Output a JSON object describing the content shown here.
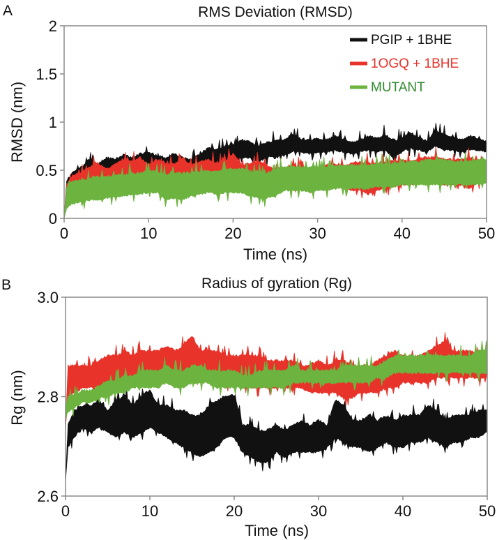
{
  "chart_data": [
    {
      "type": "area",
      "panel_label": "A",
      "title": "RMS Deviation (RMSD)",
      "xlabel": "Time (ns)",
      "ylabel": "RMSD (nm)",
      "xlim": [
        0,
        50
      ],
      "ylim": [
        0,
        2
      ],
      "x_ticks": [
        0,
        10,
        20,
        30,
        40,
        50
      ],
      "x_tick_labels": [
        "0",
        "10",
        "20",
        "30",
        "40",
        "50"
      ],
      "y_ticks": [
        0,
        0.5,
        1,
        1.5,
        2
      ],
      "y_tick_labels": [
        "0",
        "0.5",
        "1",
        "1.5",
        "2"
      ],
      "grid": false,
      "legend_position": "top-right",
      "x": [
        0,
        0.3,
        1,
        2,
        3,
        4,
        5,
        6,
        7,
        8,
        9,
        10,
        11,
        12,
        13,
        14,
        15,
        16,
        17,
        18,
        19,
        20,
        21,
        22,
        23,
        24,
        25,
        26,
        27,
        28,
        29,
        30,
        31,
        32,
        33,
        34,
        35,
        36,
        37,
        38,
        39,
        40,
        41,
        42,
        43,
        44,
        45,
        46,
        47,
        48,
        49,
        50
      ],
      "series": [
        {
          "name": "PGIP + 1BHE",
          "color": "#111111",
          "upper": [
            0.0,
            0.38,
            0.47,
            0.52,
            0.6,
            0.55,
            0.62,
            0.6,
            0.65,
            0.62,
            0.66,
            0.68,
            0.64,
            0.62,
            0.66,
            0.62,
            0.6,
            0.65,
            0.72,
            0.7,
            0.74,
            0.76,
            0.8,
            0.78,
            0.74,
            0.78,
            0.8,
            0.8,
            0.86,
            0.82,
            0.8,
            0.82,
            0.8,
            0.84,
            0.82,
            0.78,
            0.8,
            0.84,
            0.82,
            0.86,
            0.8,
            0.82,
            0.88,
            0.82,
            0.8,
            0.9,
            0.86,
            0.84,
            0.8,
            0.84,
            0.82,
            0.78
          ],
          "lower": [
            0.0,
            0.33,
            0.4,
            0.44,
            0.47,
            0.47,
            0.5,
            0.5,
            0.52,
            0.5,
            0.54,
            0.55,
            0.52,
            0.5,
            0.54,
            0.52,
            0.5,
            0.54,
            0.58,
            0.56,
            0.6,
            0.6,
            0.64,
            0.64,
            0.6,
            0.64,
            0.66,
            0.66,
            0.7,
            0.7,
            0.68,
            0.7,
            0.7,
            0.72,
            0.7,
            0.68,
            0.7,
            0.72,
            0.7,
            0.72,
            0.64,
            0.7,
            0.74,
            0.72,
            0.7,
            0.76,
            0.72,
            0.72,
            0.7,
            0.72,
            0.72,
            0.7
          ]
        },
        {
          "name": "1OGQ + 1BHE",
          "color": "#e8332a",
          "upper": [
            0.0,
            0.34,
            0.44,
            0.46,
            0.52,
            0.56,
            0.5,
            0.55,
            0.6,
            0.58,
            0.62,
            0.55,
            0.6,
            0.56,
            0.55,
            0.62,
            0.54,
            0.58,
            0.6,
            0.56,
            0.58,
            0.66,
            0.54,
            0.56,
            0.58,
            0.54,
            0.5,
            0.52,
            0.54,
            0.52,
            0.5,
            0.52,
            0.54,
            0.56,
            0.54,
            0.56,
            0.58,
            0.56,
            0.56,
            0.58,
            0.58,
            0.6,
            0.58,
            0.62,
            0.62,
            0.64,
            0.6,
            0.6,
            0.6,
            0.62,
            0.6,
            0.58
          ],
          "lower": [
            0.0,
            0.28,
            0.34,
            0.36,
            0.38,
            0.4,
            0.38,
            0.4,
            0.42,
            0.42,
            0.44,
            0.42,
            0.44,
            0.4,
            0.4,
            0.44,
            0.4,
            0.42,
            0.44,
            0.42,
            0.44,
            0.46,
            0.38,
            0.36,
            0.38,
            0.36,
            0.36,
            0.34,
            0.34,
            0.32,
            0.32,
            0.32,
            0.34,
            0.34,
            0.32,
            0.3,
            0.3,
            0.26,
            0.3,
            0.32,
            0.34,
            0.36,
            0.36,
            0.38,
            0.38,
            0.38,
            0.36,
            0.36,
            0.36,
            0.32,
            0.38,
            0.4
          ]
        },
        {
          "name": "MUTANT",
          "color": "#6db33f",
          "upper": [
            0.0,
            0.3,
            0.38,
            0.38,
            0.4,
            0.42,
            0.42,
            0.44,
            0.44,
            0.46,
            0.46,
            0.48,
            0.48,
            0.44,
            0.46,
            0.46,
            0.46,
            0.48,
            0.48,
            0.48,
            0.5,
            0.5,
            0.5,
            0.48,
            0.48,
            0.46,
            0.5,
            0.52,
            0.52,
            0.52,
            0.52,
            0.52,
            0.52,
            0.54,
            0.54,
            0.54,
            0.54,
            0.54,
            0.56,
            0.56,
            0.56,
            0.56,
            0.58,
            0.58,
            0.6,
            0.6,
            0.6,
            0.58,
            0.58,
            0.58,
            0.6,
            0.6
          ],
          "lower": [
            0.0,
            0.12,
            0.16,
            0.18,
            0.2,
            0.2,
            0.22,
            0.24,
            0.24,
            0.26,
            0.26,
            0.28,
            0.28,
            0.2,
            0.22,
            0.2,
            0.24,
            0.26,
            0.28,
            0.26,
            0.28,
            0.28,
            0.28,
            0.24,
            0.22,
            0.22,
            0.24,
            0.3,
            0.3,
            0.3,
            0.28,
            0.3,
            0.3,
            0.32,
            0.32,
            0.32,
            0.32,
            0.32,
            0.34,
            0.34,
            0.34,
            0.36,
            0.36,
            0.36,
            0.36,
            0.36,
            0.36,
            0.36,
            0.36,
            0.36,
            0.36,
            0.38
          ]
        }
      ]
    },
    {
      "type": "area",
      "panel_label": "B",
      "title": "Radius of gyration (Rg)",
      "xlabel": "Time (ns)",
      "ylabel": "Rg (nm)",
      "xlim": [
        0,
        50
      ],
      "ylim": [
        2.6,
        3.0
      ],
      "x_ticks": [
        0,
        10,
        20,
        30,
        40,
        50
      ],
      "x_tick_labels": [
        "0",
        "10",
        "20",
        "30",
        "40",
        "50"
      ],
      "y_ticks": [
        2.6,
        2.8,
        3.0
      ],
      "y_tick_labels": [
        "2.6",
        "2.8",
        "3.0"
      ],
      "grid": false,
      "x": [
        0,
        0.3,
        1,
        2,
        3,
        4,
        5,
        6,
        7,
        8,
        9,
        10,
        11,
        12,
        13,
        14,
        15,
        16,
        17,
        18,
        19,
        20,
        21,
        22,
        23,
        24,
        25,
        26,
        27,
        28,
        29,
        30,
        31,
        32,
        33,
        34,
        35,
        36,
        37,
        38,
        39,
        40,
        41,
        42,
        43,
        44,
        45,
        46,
        47,
        48,
        49,
        50
      ],
      "series": [
        {
          "name": "PGIP + 1BHE",
          "color": "#111111",
          "upper": [
            2.63,
            2.74,
            2.77,
            2.78,
            2.78,
            2.79,
            2.77,
            2.79,
            2.8,
            2.78,
            2.8,
            2.81,
            2.78,
            2.78,
            2.77,
            2.77,
            2.76,
            2.76,
            2.78,
            2.79,
            2.8,
            2.8,
            2.74,
            2.74,
            2.73,
            2.73,
            2.74,
            2.73,
            2.74,
            2.75,
            2.74,
            2.75,
            2.74,
            2.79,
            2.78,
            2.75,
            2.75,
            2.76,
            2.75,
            2.76,
            2.75,
            2.76,
            2.76,
            2.76,
            2.78,
            2.77,
            2.75,
            2.76,
            2.76,
            2.76,
            2.77,
            2.77
          ],
          "lower": [
            2.63,
            2.7,
            2.72,
            2.74,
            2.73,
            2.74,
            2.73,
            2.72,
            2.73,
            2.72,
            2.73,
            2.74,
            2.73,
            2.72,
            2.71,
            2.7,
            2.69,
            2.68,
            2.69,
            2.7,
            2.72,
            2.72,
            2.69,
            2.68,
            2.67,
            2.67,
            2.69,
            2.68,
            2.69,
            2.69,
            2.69,
            2.69,
            2.7,
            2.72,
            2.71,
            2.7,
            2.7,
            2.69,
            2.7,
            2.71,
            2.7,
            2.7,
            2.71,
            2.71,
            2.72,
            2.71,
            2.7,
            2.71,
            2.71,
            2.72,
            2.72,
            2.73
          ]
        },
        {
          "name": "1OGQ + 1BHE",
          "color": "#e8332a",
          "upper": [
            2.74,
            2.86,
            2.86,
            2.86,
            2.86,
            2.87,
            2.88,
            2.88,
            2.89,
            2.88,
            2.89,
            2.89,
            2.89,
            2.9,
            2.89,
            2.9,
            2.92,
            2.89,
            2.89,
            2.89,
            2.88,
            2.88,
            2.88,
            2.88,
            2.88,
            2.87,
            2.87,
            2.87,
            2.87,
            2.86,
            2.86,
            2.87,
            2.86,
            2.87,
            2.87,
            2.86,
            2.86,
            2.86,
            2.87,
            2.88,
            2.89,
            2.88,
            2.88,
            2.88,
            2.89,
            2.9,
            2.91,
            2.89,
            2.89,
            2.89,
            2.88,
            2.89
          ],
          "lower": [
            2.74,
            2.8,
            2.81,
            2.82,
            2.82,
            2.82,
            2.82,
            2.83,
            2.83,
            2.83,
            2.83,
            2.84,
            2.84,
            2.84,
            2.84,
            2.84,
            2.84,
            2.84,
            2.84,
            2.84,
            2.83,
            2.83,
            2.83,
            2.82,
            2.82,
            2.82,
            2.82,
            2.82,
            2.82,
            2.82,
            2.81,
            2.81,
            2.81,
            2.81,
            2.8,
            2.8,
            2.81,
            2.81,
            2.81,
            2.82,
            2.82,
            2.83,
            2.83,
            2.83,
            2.83,
            2.84,
            2.84,
            2.84,
            2.84,
            2.84,
            2.84,
            2.84
          ]
        },
        {
          "name": "MUTANT",
          "color": "#6db33f",
          "upper": [
            2.78,
            2.8,
            2.8,
            2.81,
            2.81,
            2.82,
            2.83,
            2.83,
            2.84,
            2.84,
            2.85,
            2.85,
            2.85,
            2.86,
            2.85,
            2.85,
            2.86,
            2.86,
            2.85,
            2.85,
            2.85,
            2.85,
            2.84,
            2.84,
            2.85,
            2.85,
            2.85,
            2.85,
            2.86,
            2.85,
            2.85,
            2.85,
            2.85,
            2.85,
            2.86,
            2.86,
            2.86,
            2.86,
            2.86,
            2.87,
            2.88,
            2.88,
            2.88,
            2.88,
            2.88,
            2.88,
            2.88,
            2.88,
            2.88,
            2.88,
            2.89,
            2.89
          ],
          "lower": [
            2.76,
            2.77,
            2.78,
            2.79,
            2.79,
            2.8,
            2.8,
            2.81,
            2.81,
            2.82,
            2.82,
            2.82,
            2.82,
            2.83,
            2.82,
            2.82,
            2.83,
            2.83,
            2.83,
            2.82,
            2.82,
            2.82,
            2.82,
            2.82,
            2.82,
            2.82,
            2.82,
            2.82,
            2.83,
            2.83,
            2.83,
            2.83,
            2.83,
            2.83,
            2.83,
            2.83,
            2.83,
            2.83,
            2.84,
            2.84,
            2.85,
            2.85,
            2.85,
            2.85,
            2.85,
            2.85,
            2.85,
            2.85,
            2.85,
            2.85,
            2.85,
            2.85
          ]
        }
      ]
    }
  ]
}
